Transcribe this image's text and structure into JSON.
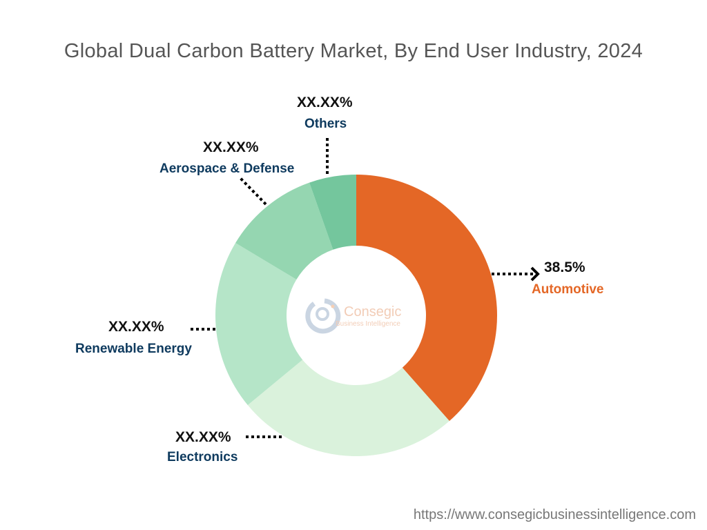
{
  "chart_data": {
    "type": "pie",
    "donut": true,
    "title": "Global Dual Carbon Battery Market, By End User Industry, 2024",
    "categories": [
      "Automotive",
      "Electronics",
      "Renewable Energy",
      "Aerospace & Defense",
      "Others"
    ],
    "values": [
      38.5,
      25.5,
      19.6,
      11.0,
      5.4
    ],
    "value_labels": [
      "38.5%",
      "XX.XX%",
      "XX.XX%",
      "XX.XX%",
      "XX.XX%"
    ],
    "colors": [
      "#E46726",
      "#DAF2DC",
      "#B5E5C8",
      "#95D6B1",
      "#74C69D"
    ],
    "label_colors": [
      "#E46726",
      "#0E3A5E",
      "#0E3A5E",
      "#0E3A5E",
      "#0E3A5E"
    ],
    "start": "12 o'clock, clockwise"
  },
  "logo": {
    "name": "Consegic",
    "tagline": "Business Intelligence"
  },
  "footer": {
    "url": "https://www.consegicbusinessintelligence.com"
  }
}
